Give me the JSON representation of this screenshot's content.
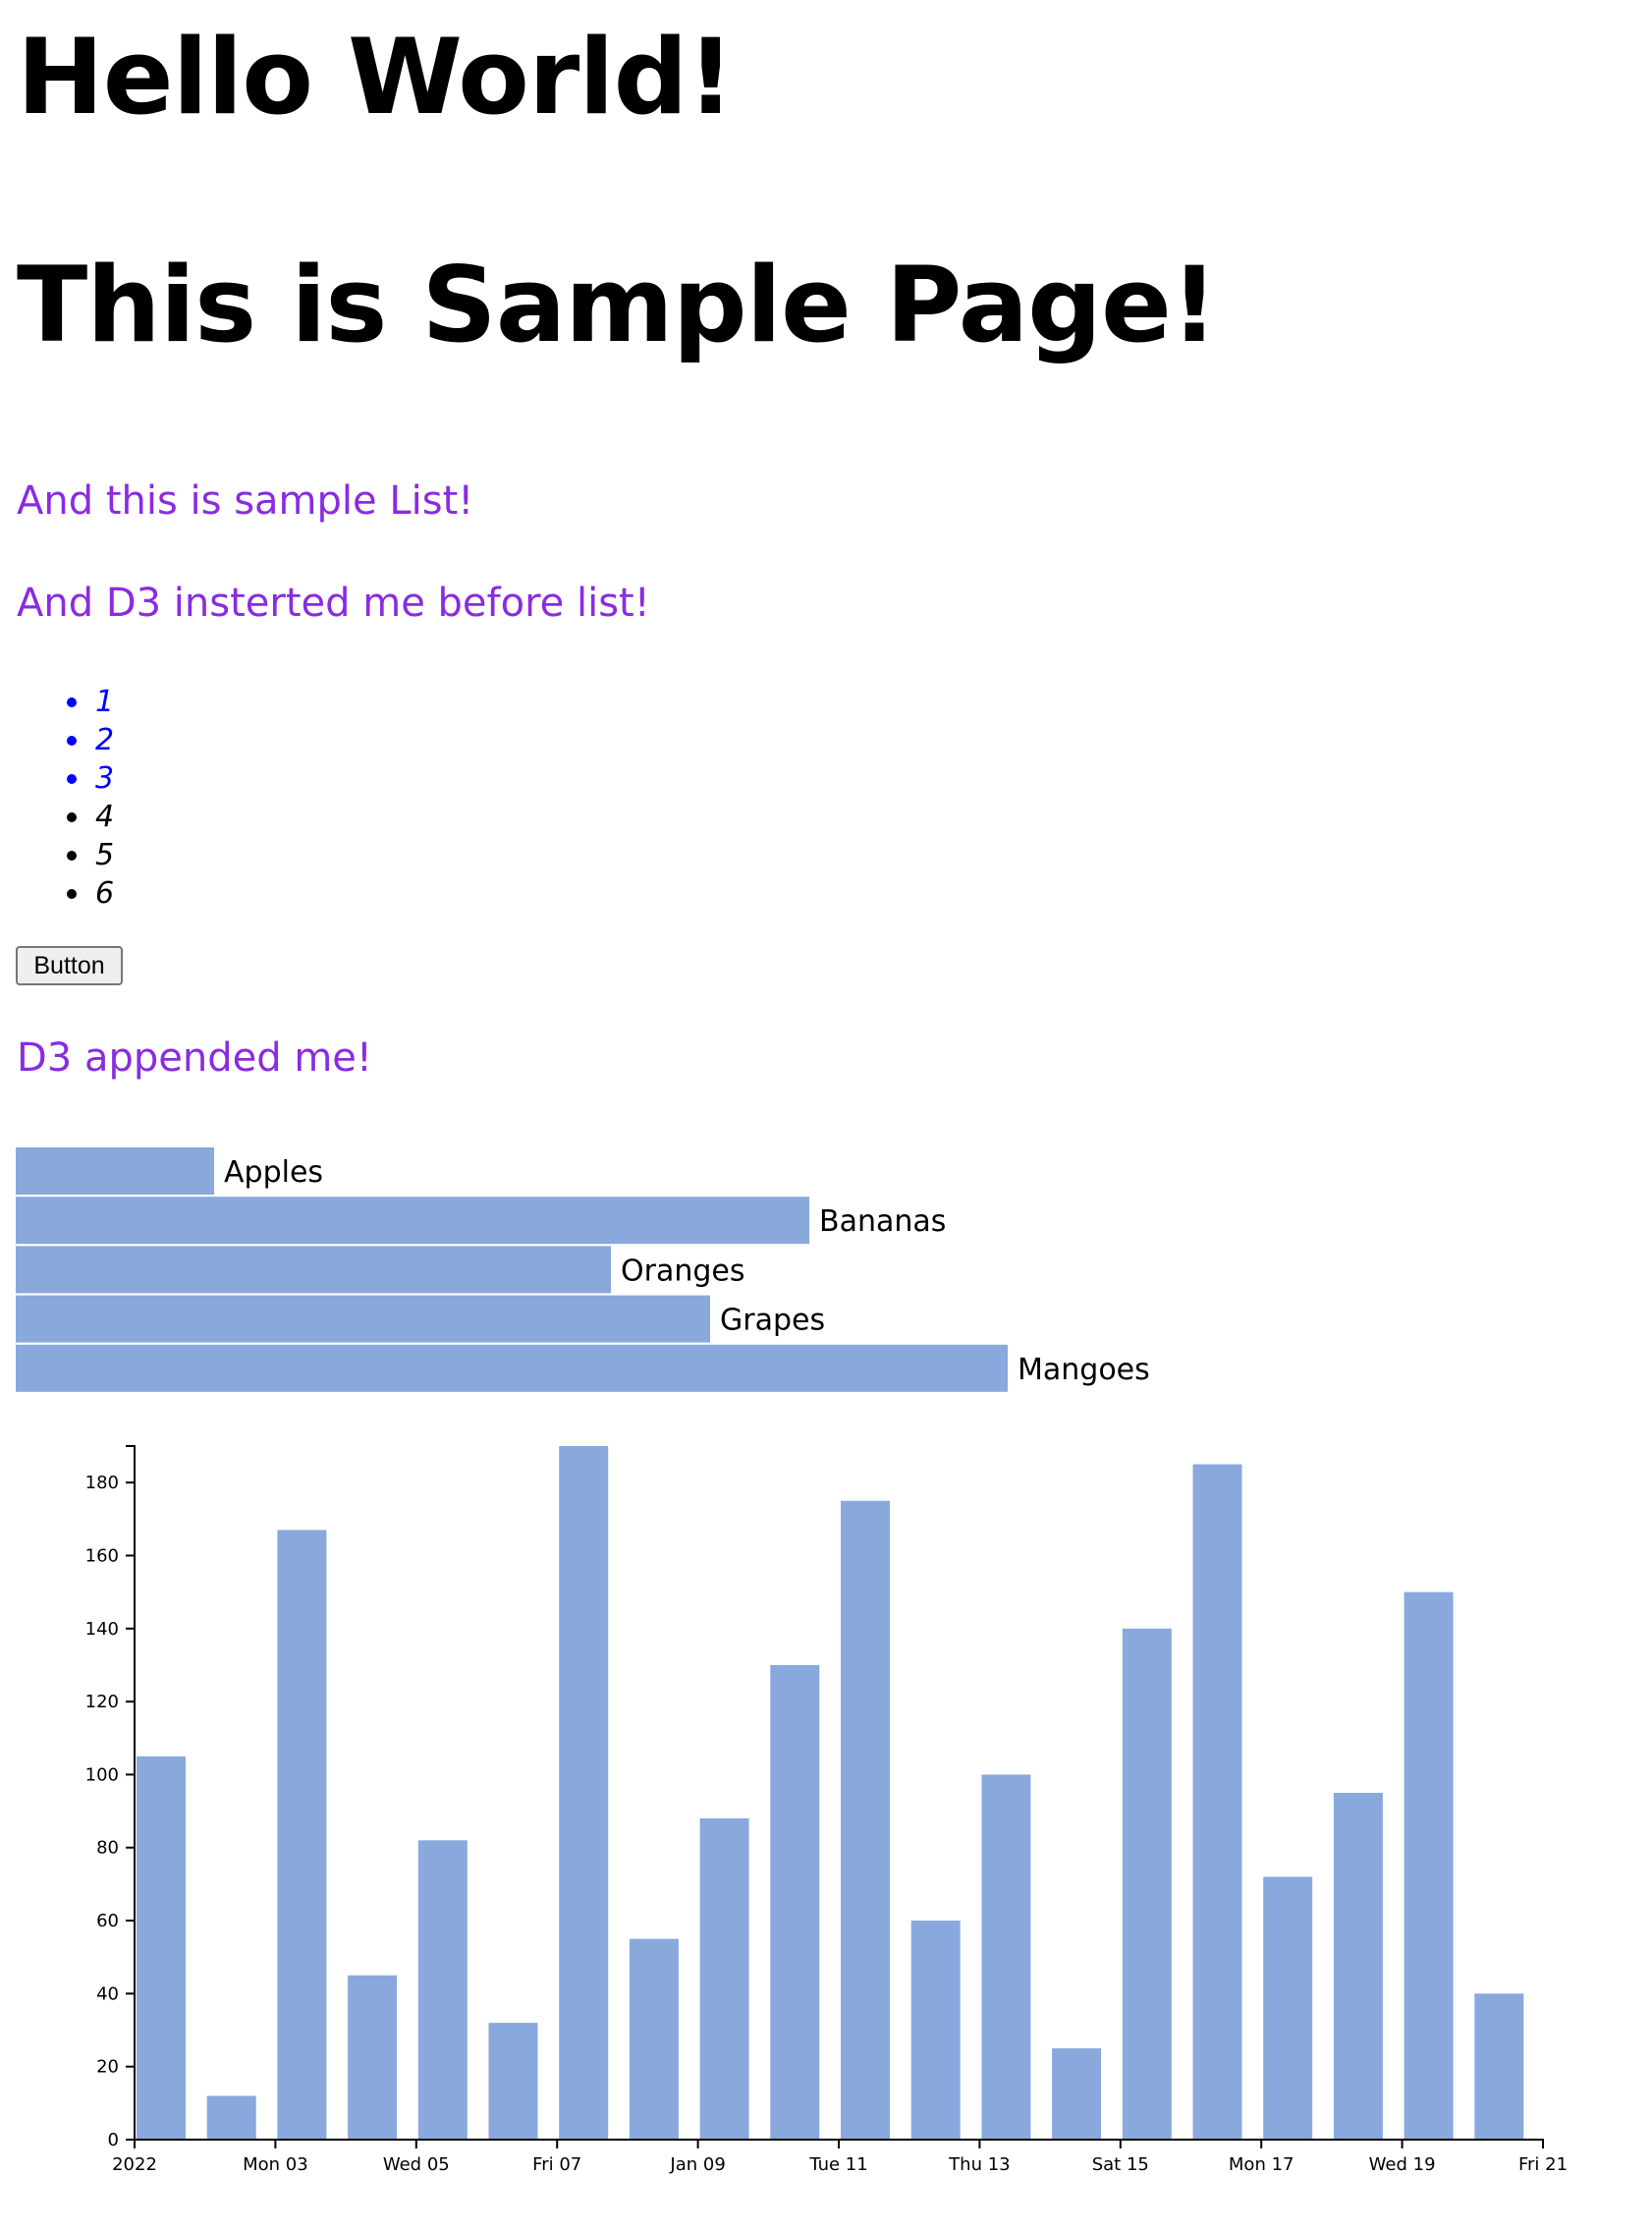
{
  "headings": {
    "hello": "Hello World!",
    "sample": "This is Sample Page!",
    "list_heading": "And this is sample List!",
    "d3_inserted": "And D3 insterted me before list!",
    "d3_appended": "D3 appended me!"
  },
  "colors": {
    "purple_text": "#8a2be2",
    "blue_item": "#0000ff",
    "black_item": "#000000",
    "bar_fill": "#89a9dd"
  },
  "list": {
    "items": [
      {
        "label": "1",
        "color": "#0000ff"
      },
      {
        "label": "2",
        "color": "#0000ff"
      },
      {
        "label": "3",
        "color": "#0000ff"
      },
      {
        "label": "4",
        "color": "#000000"
      },
      {
        "label": "5",
        "color": "#000000"
      },
      {
        "label": "6",
        "color": "#000000"
      }
    ]
  },
  "button": {
    "label": "Button"
  },
  "chart_data": [
    {
      "type": "bar",
      "orientation": "horizontal",
      "categories": [
        "Apples",
        "Bananas",
        "Oranges",
        "Grapes",
        "Mangoes"
      ],
      "values": [
        20,
        80,
        60,
        70,
        100
      ]
    },
    {
      "type": "bar",
      "x_dates": [
        "2022-01-01",
        "2022-01-02",
        "2022-01-03",
        "2022-01-04",
        "2022-01-05",
        "2022-01-06",
        "2022-01-07",
        "2022-01-08",
        "2022-01-09",
        "2022-01-10",
        "2022-01-11",
        "2022-01-12",
        "2022-01-13",
        "2022-01-14",
        "2022-01-15",
        "2022-01-16",
        "2022-01-17",
        "2022-01-18",
        "2022-01-19",
        "2022-01-20"
      ],
      "values": [
        105,
        12,
        167,
        45,
        82,
        32,
        190,
        55,
        88,
        130,
        175,
        60,
        100,
        25,
        140,
        185,
        72,
        95,
        150,
        40
      ],
      "ylim": [
        0,
        190
      ],
      "yticks": [
        0,
        20,
        40,
        60,
        80,
        100,
        120,
        140,
        160,
        180
      ],
      "x_tick_labels": [
        "2022",
        "Mon 03",
        "Wed 05",
        "Fri 07",
        "Jan 09",
        "Tue 11",
        "Thu 13",
        "Sat 15",
        "Mon 17",
        "Wed 19",
        "Fri 21"
      ],
      "xlabel": "",
      "ylabel": "",
      "title": ""
    }
  ]
}
